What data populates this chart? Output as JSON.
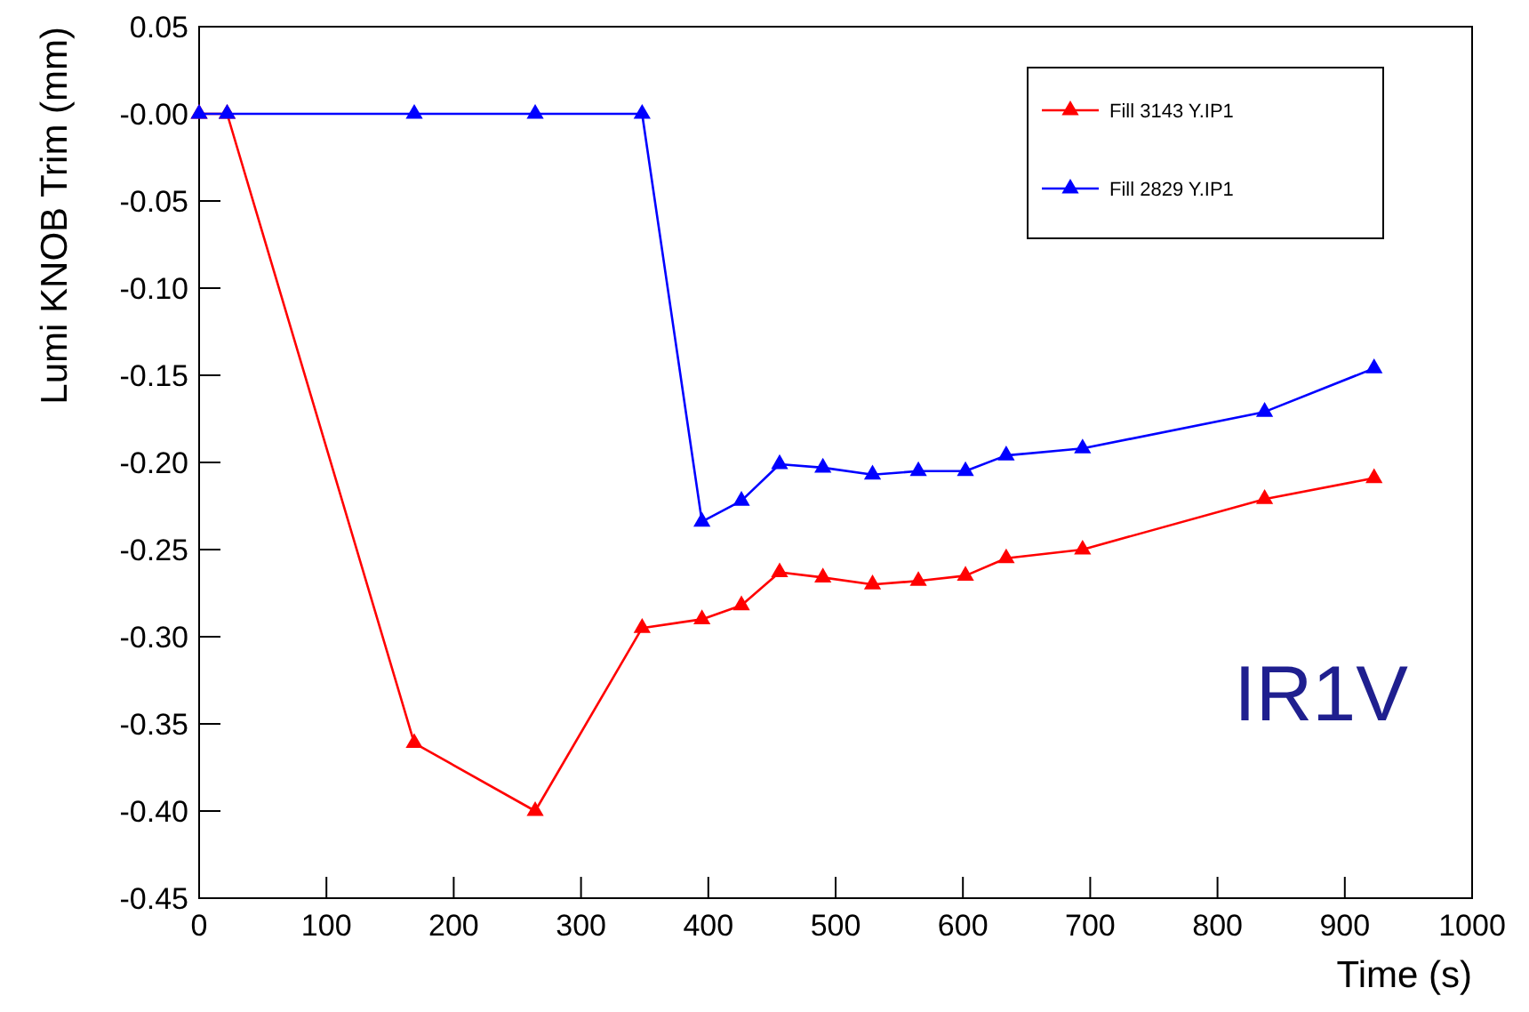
{
  "chart_data": {
    "type": "line",
    "xlabel": "Time (s)",
    "ylabel": "Lumi KNOB Trim (mm)",
    "annotations": [
      "IR1V"
    ],
    "xlim": [
      0,
      1000
    ],
    "xticks": [
      0,
      100,
      200,
      300,
      400,
      500,
      600,
      700,
      800,
      900,
      1000
    ],
    "ylim": [
      -0.45,
      0.05
    ],
    "yticks": [
      {
        "value": -0.45,
        "label": "-0.45"
      },
      {
        "value": -0.4,
        "label": "-0.40"
      },
      {
        "value": -0.35,
        "label": "-0.35"
      },
      {
        "value": -0.3,
        "label": "-0.30"
      },
      {
        "value": -0.25,
        "label": "-0.25"
      },
      {
        "value": -0.2,
        "label": "-0.20"
      },
      {
        "value": -0.15,
        "label": "-0.15"
      },
      {
        "value": -0.1,
        "label": "-0.10"
      },
      {
        "value": -0.05,
        "label": "-0.05"
      },
      {
        "value": 0,
        "label": "-0.00"
      },
      {
        "value": 0.05,
        "label": "0.05"
      }
    ],
    "x": [
      0,
      22,
      169,
      264,
      348,
      395,
      426,
      456,
      490,
      529,
      565,
      602,
      634,
      694,
      837,
      923
    ],
    "series": [
      {
        "name": "Fill 3143 Y.IP1",
        "color": "#ff0000",
        "values": [
          0,
          0,
          -0.361,
          -0.4,
          -0.295,
          -0.29,
          -0.282,
          -0.263,
          -0.266,
          -0.27,
          -0.268,
          -0.265,
          -0.255,
          -0.25,
          -0.221,
          -0.209
        ]
      },
      {
        "name": "Fill 2829 Y.IP1",
        "color": "#0000ff",
        "values": [
          0,
          0,
          0,
          0,
          0,
          -0.234,
          -0.222,
          -0.201,
          -0.203,
          -0.207,
          -0.205,
          -0.205,
          -0.196,
          -0.192,
          -0.171,
          -0.146
        ]
      }
    ],
    "marker": "triangle",
    "line_style": "solid",
    "grid": false,
    "legend": "top right"
  }
}
